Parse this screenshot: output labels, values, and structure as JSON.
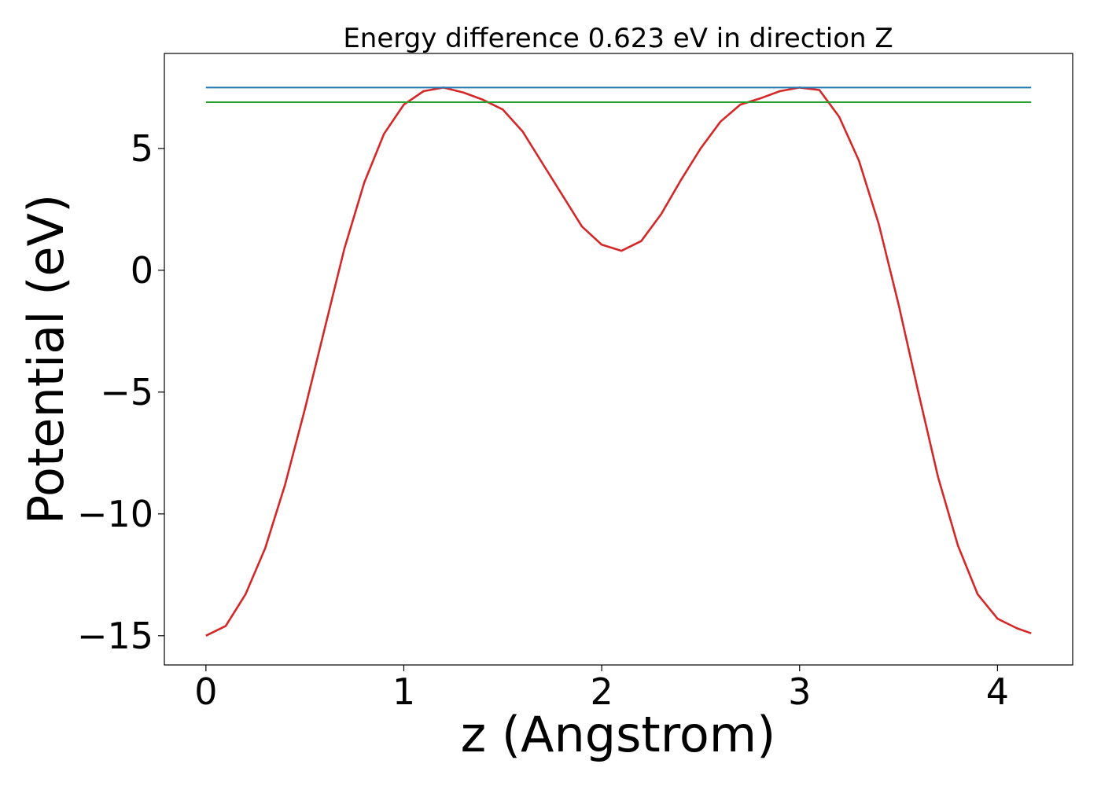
{
  "chart_data": {
    "type": "line",
    "title": "Energy difference 0.623 eV in direction Z",
    "xlabel": "z (Angstrom)",
    "ylabel": "Potential (eV)",
    "xlim": [
      -0.21,
      4.38
    ],
    "ylim": [
      -16.2,
      8.9
    ],
    "xticks": [
      0,
      1,
      2,
      3,
      4
    ],
    "xtick_labels": [
      "0",
      "1",
      "2",
      "3",
      "4"
    ],
    "yticks": [
      5,
      0,
      -5,
      -10,
      -15
    ],
    "ytick_labels": [
      "5",
      "0",
      "−5",
      "−10",
      "−15"
    ],
    "grid": false,
    "series": [
      {
        "color": "#d62728",
        "x": [
          0,
          0.1,
          0.2,
          0.3,
          0.4,
          0.5,
          0.6,
          0.7,
          0.8,
          0.9,
          1.0,
          1.1,
          1.2,
          1.3,
          1.4,
          1.5,
          1.6,
          1.7,
          1.8,
          1.9,
          2.0,
          2.1,
          2.2,
          2.3,
          2.4,
          2.5,
          2.6,
          2.7,
          2.8,
          2.9,
          3.0,
          3.1,
          3.2,
          3.3,
          3.4,
          3.5,
          3.6,
          3.7,
          3.8,
          3.9,
          4.0,
          4.1,
          4.17
        ],
        "y": [
          -15.0,
          -14.6,
          -13.3,
          -11.4,
          -8.8,
          -5.7,
          -2.4,
          0.9,
          3.6,
          5.6,
          6.8,
          7.35,
          7.5,
          7.3,
          7.0,
          6.6,
          5.7,
          4.4,
          3.1,
          1.8,
          1.05,
          0.8,
          1.2,
          2.3,
          3.7,
          5.0,
          6.1,
          6.8,
          7.05,
          7.35,
          7.5,
          7.4,
          6.3,
          4.5,
          1.9,
          -1.4,
          -5.0,
          -8.5,
          -11.3,
          -13.3,
          -14.3,
          -14.7,
          -14.9
        ]
      },
      {
        "color": "#1f77b4",
        "x": [
          0,
          4.17
        ],
        "y": [
          7.5,
          7.5
        ]
      },
      {
        "color": "#2ca02c",
        "x": [
          0,
          4.17
        ],
        "y": [
          6.9,
          6.9
        ]
      }
    ]
  }
}
